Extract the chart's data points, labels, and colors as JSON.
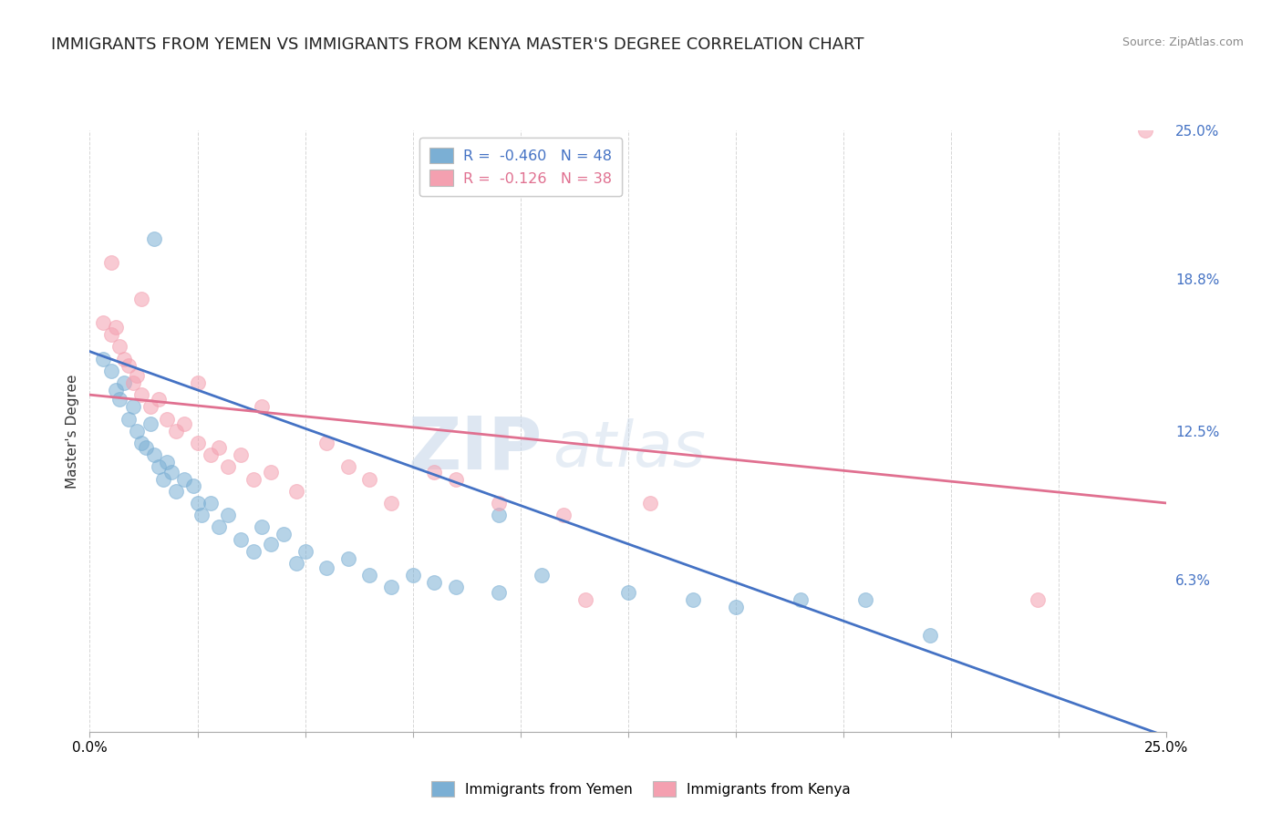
{
  "title": "IMMIGRANTS FROM YEMEN VS IMMIGRANTS FROM KENYA MASTER'S DEGREE CORRELATION CHART",
  "source": "Source: ZipAtlas.com",
  "ylabel": "Master's Degree",
  "right_yticks": [
    0.0,
    6.3,
    12.5,
    18.8,
    25.0
  ],
  "right_yticklabels": [
    "",
    "6.3%",
    "12.5%",
    "18.8%",
    "25.0%"
  ],
  "legend_entries": [
    {
      "label": "R =  -0.460   N = 48",
      "color": "#a8c4e0"
    },
    {
      "label": "R =  -0.126   N = 38",
      "color": "#f4a0b0"
    }
  ],
  "legend_bottom_entries": [
    {
      "label": "Immigrants from Yemen",
      "color": "#a8c4e0"
    },
    {
      "label": "Immigrants from Kenya",
      "color": "#f4a0b0"
    }
  ],
  "blue_scatter": [
    [
      0.3,
      15.5
    ],
    [
      0.5,
      15.0
    ],
    [
      0.6,
      14.2
    ],
    [
      0.7,
      13.8
    ],
    [
      0.8,
      14.5
    ],
    [
      0.9,
      13.0
    ],
    [
      1.0,
      13.5
    ],
    [
      1.1,
      12.5
    ],
    [
      1.2,
      12.0
    ],
    [
      1.3,
      11.8
    ],
    [
      1.4,
      12.8
    ],
    [
      1.5,
      11.5
    ],
    [
      1.6,
      11.0
    ],
    [
      1.7,
      10.5
    ],
    [
      1.8,
      11.2
    ],
    [
      1.9,
      10.8
    ],
    [
      2.0,
      10.0
    ],
    [
      2.2,
      10.5
    ],
    [
      2.4,
      10.2
    ],
    [
      2.5,
      9.5
    ],
    [
      2.6,
      9.0
    ],
    [
      2.8,
      9.5
    ],
    [
      3.0,
      8.5
    ],
    [
      3.2,
      9.0
    ],
    [
      3.5,
      8.0
    ],
    [
      3.8,
      7.5
    ],
    [
      4.0,
      8.5
    ],
    [
      4.2,
      7.8
    ],
    [
      4.5,
      8.2
    ],
    [
      4.8,
      7.0
    ],
    [
      5.0,
      7.5
    ],
    [
      5.5,
      6.8
    ],
    [
      6.0,
      7.2
    ],
    [
      6.5,
      6.5
    ],
    [
      7.0,
      6.0
    ],
    [
      7.5,
      6.5
    ],
    [
      8.0,
      6.2
    ],
    [
      8.5,
      6.0
    ],
    [
      9.5,
      5.8
    ],
    [
      10.5,
      6.5
    ],
    [
      12.5,
      5.8
    ],
    [
      14.0,
      5.5
    ],
    [
      15.0,
      5.2
    ],
    [
      16.5,
      5.5
    ],
    [
      18.0,
      5.5
    ],
    [
      1.5,
      20.5
    ],
    [
      9.5,
      9.0
    ],
    [
      19.5,
      4.0
    ]
  ],
  "pink_scatter": [
    [
      0.3,
      17.0
    ],
    [
      0.5,
      16.5
    ],
    [
      0.6,
      16.8
    ],
    [
      0.7,
      16.0
    ],
    [
      0.8,
      15.5
    ],
    [
      0.9,
      15.2
    ],
    [
      1.0,
      14.5
    ],
    [
      1.1,
      14.8
    ],
    [
      1.2,
      14.0
    ],
    [
      1.4,
      13.5
    ],
    [
      1.6,
      13.8
    ],
    [
      1.8,
      13.0
    ],
    [
      2.0,
      12.5
    ],
    [
      2.2,
      12.8
    ],
    [
      2.5,
      12.0
    ],
    [
      2.8,
      11.5
    ],
    [
      3.0,
      11.8
    ],
    [
      3.2,
      11.0
    ],
    [
      3.5,
      11.5
    ],
    [
      3.8,
      10.5
    ],
    [
      4.2,
      10.8
    ],
    [
      4.8,
      10.0
    ],
    [
      5.5,
      12.0
    ],
    [
      6.5,
      10.5
    ],
    [
      7.0,
      9.5
    ],
    [
      8.5,
      10.5
    ],
    [
      9.5,
      9.5
    ],
    [
      11.0,
      9.0
    ],
    [
      0.5,
      19.5
    ],
    [
      1.2,
      18.0
    ],
    [
      2.5,
      14.5
    ],
    [
      4.0,
      13.5
    ],
    [
      6.0,
      11.0
    ],
    [
      8.0,
      10.8
    ],
    [
      24.5,
      25.0
    ],
    [
      22.0,
      5.5
    ],
    [
      13.0,
      9.5
    ],
    [
      11.5,
      5.5
    ]
  ],
  "blue_line_x": [
    0,
    25
  ],
  "blue_line_y_start": 15.8,
  "blue_slope": -0.64,
  "pink_line_x": [
    0,
    25
  ],
  "pink_line_y_start": 14.0,
  "pink_slope": -0.18,
  "xlim": [
    0,
    25
  ],
  "ylim": [
    0,
    25
  ],
  "watermark_zip": "ZIP",
  "watermark_atlas": "atlas",
  "background_color": "#ffffff",
  "scatter_size": 130,
  "blue_color": "#7bafd4",
  "pink_color": "#f4a0b0",
  "blue_line_color": "#4472c4",
  "pink_line_color": "#e07090",
  "grid_color": "#cccccc",
  "title_fontsize": 13,
  "axis_label_fontsize": 11
}
